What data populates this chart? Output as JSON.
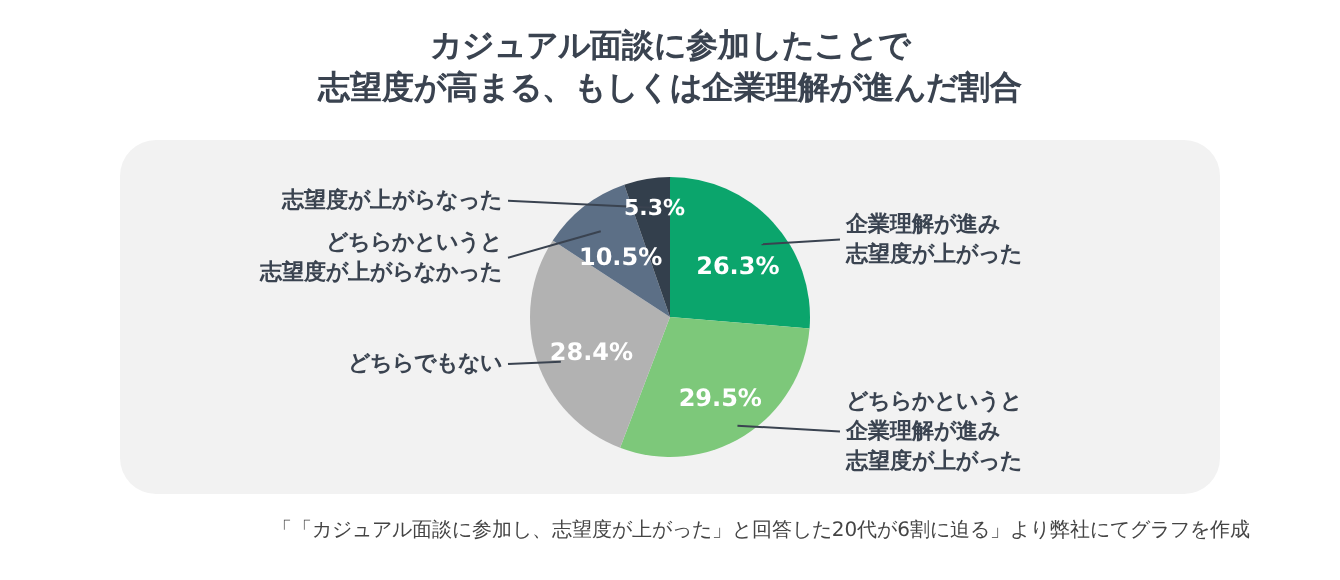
{
  "chart_data": {
    "type": "pie",
    "title": "カジュアル面談に参加したことで志望度が高まる、もしくは企業理解が進んだ割合",
    "categories": [
      "企業理解が進み志望度が上がった",
      "どちらかというと企業理解が進み志望度が上がった",
      "どちらでもない",
      "どちらかというと志望度が上がらなかった",
      "志望度が上がらなった"
    ],
    "values": [
      26.3,
      29.5,
      28.4,
      10.5,
      5.3
    ],
    "value_labels": [
      "26.3%",
      "29.5%",
      "28.4%",
      "10.5%",
      "5.3%"
    ],
    "colors": [
      "#0ba56c",
      "#7dc87a",
      "#b2b2b2",
      "#5c6f86",
      "#333f4c"
    ],
    "annotations": [
      "「「カジュアル面談に参加し、志望度が上がった」と回答した20代が6割に迫る」より弊社にてグラフを作成"
    ]
  }
}
